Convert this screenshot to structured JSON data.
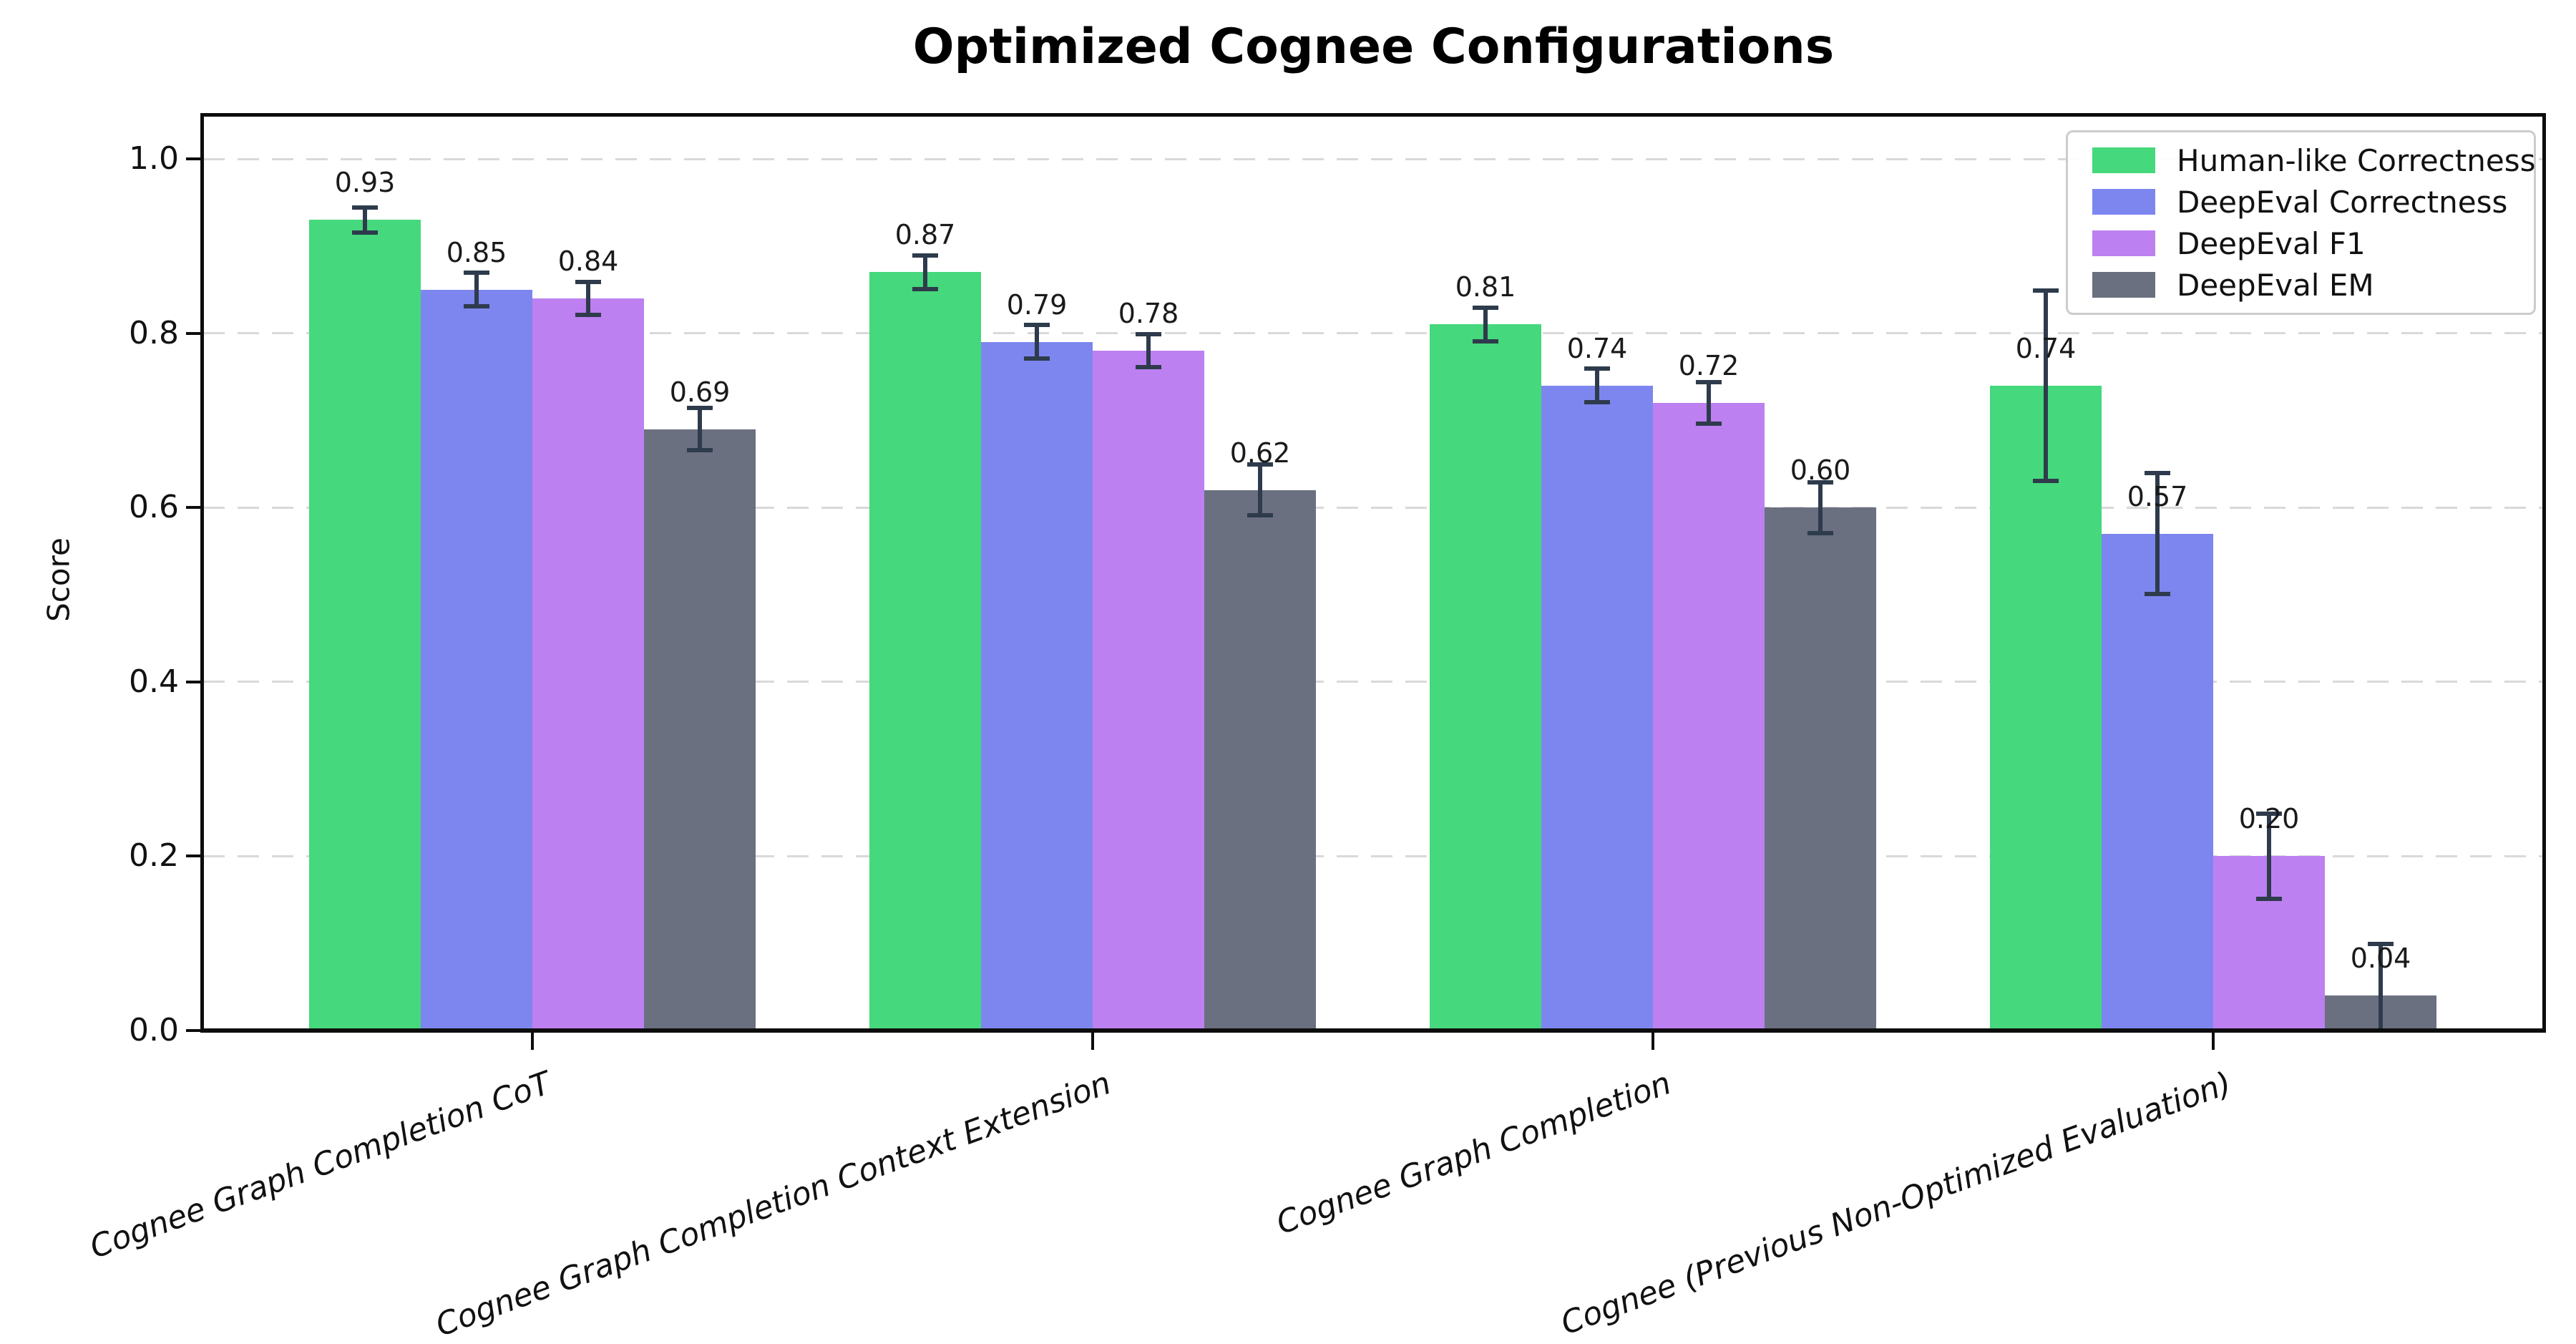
{
  "title": "Optimized Cognee Configurations",
  "chart_data": {
    "type": "bar",
    "title": "Optimized Cognee Configurations",
    "xlabel": "",
    "ylabel": "Score",
    "ylim": [
      0.0,
      1.05
    ],
    "yticks": [
      0.0,
      0.2,
      0.4,
      0.6,
      0.8,
      1.0
    ],
    "grid": "horizontal-dashed",
    "legend_position": "upper right",
    "bar_labels": true,
    "categories": [
      "Cognee Graph Completion CoT",
      "Cognee Graph Completion Context Extension",
      "Cognee Graph Completion",
      "Cognee (Previous Non-Optimized Evaluation)"
    ],
    "series": [
      {
        "name": "Human-like Correctness",
        "color": "#45d87c",
        "values": [
          0.93,
          0.87,
          0.81,
          0.74
        ],
        "errors": [
          0.015,
          0.02,
          0.02,
          0.11
        ]
      },
      {
        "name": "DeepEval Correctness",
        "color": "#7d86ee",
        "values": [
          0.85,
          0.79,
          0.74,
          0.57
        ],
        "errors": [
          0.02,
          0.02,
          0.02,
          0.07
        ]
      },
      {
        "name": "DeepEval F1",
        "color": "#bd80f0",
        "values": [
          0.84,
          0.78,
          0.72,
          0.2
        ],
        "errors": [
          0.02,
          0.02,
          0.025,
          0.05
        ]
      },
      {
        "name": "DeepEval EM",
        "color": "#6a7080",
        "values": [
          0.69,
          0.62,
          0.6,
          0.04
        ],
        "errors": [
          0.025,
          0.03,
          0.03,
          0.06
        ]
      }
    ],
    "colors": {
      "error_bar": "#2e3b4c",
      "grid": "#d9d9d9",
      "axis": "#0d0d0d",
      "legend_border": "#cccccc"
    }
  }
}
